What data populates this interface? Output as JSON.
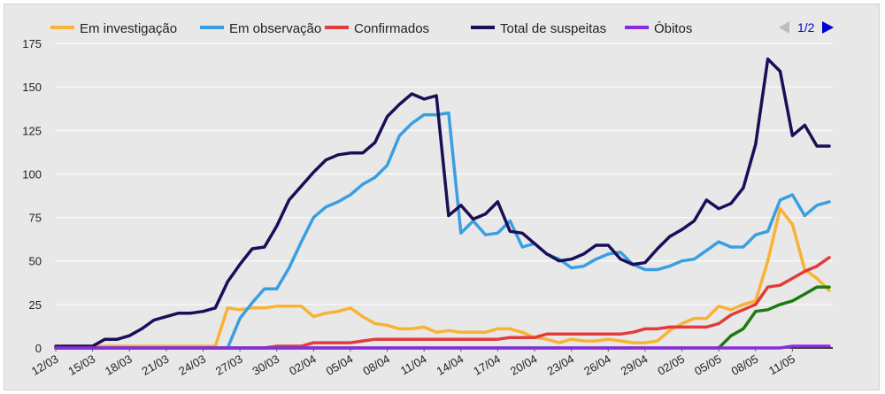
{
  "chart_data": {
    "type": "line",
    "x": [
      "12/03",
      "13/03",
      "14/03",
      "15/03",
      "16/03",
      "17/03",
      "18/03",
      "19/03",
      "20/03",
      "21/03",
      "22/03",
      "23/03",
      "24/03",
      "25/03",
      "26/03",
      "27/03",
      "28/03",
      "29/03",
      "30/03",
      "31/03",
      "01/04",
      "02/04",
      "03/04",
      "04/04",
      "05/04",
      "06/04",
      "07/04",
      "08/04",
      "09/04",
      "10/04",
      "11/04",
      "12/04",
      "13/04",
      "14/04",
      "15/04",
      "16/04",
      "17/04",
      "18/04",
      "19/04",
      "20/04",
      "21/04",
      "22/04",
      "23/04",
      "24/04",
      "25/04",
      "26/04",
      "27/04",
      "28/04",
      "29/04",
      "30/04",
      "01/05",
      "02/05",
      "03/05",
      "04/05",
      "05/05",
      "06/05",
      "07/05",
      "08/05",
      "09/05",
      "10/05",
      "11/05",
      "12/05",
      "13/05",
      "14/05"
    ],
    "x_tick_labels": [
      "12/03",
      "15/03",
      "18/03",
      "21/03",
      "24/03",
      "27/03",
      "30/03",
      "02/04",
      "05/04",
      "08/04",
      "11/04",
      "14/04",
      "17/04",
      "20/04",
      "23/04",
      "26/04",
      "29/04",
      "02/05",
      "05/05",
      "08/05",
      "11/05"
    ],
    "ylim": [
      0,
      175
    ],
    "y_ticks": [
      0,
      25,
      50,
      75,
      100,
      125,
      150,
      175
    ],
    "grid": true,
    "legend_position": "top",
    "pager": "1/2",
    "series": [
      {
        "name": "Em investigação",
        "color": "#f9b233",
        "values": [
          1,
          1,
          1,
          1,
          1,
          1,
          1,
          1,
          1,
          1,
          1,
          1,
          1,
          1,
          23,
          22,
          23,
          23,
          24,
          24,
          24,
          18,
          20,
          21,
          23,
          18,
          14,
          13,
          11,
          11,
          12,
          9,
          10,
          9,
          9,
          9,
          11,
          11,
          9,
          6,
          5,
          3,
          5,
          4,
          4,
          5,
          4,
          3,
          3,
          4,
          10,
          14,
          17,
          17,
          24,
          22,
          25,
          27,
          50,
          80,
          71,
          45,
          40,
          33
        ]
      },
      {
        "name": "Em observação",
        "color": "#3a9fe2",
        "values": [
          0,
          0,
          0,
          0,
          0,
          0,
          0,
          0,
          0,
          0,
          0,
          0,
          0,
          0,
          0,
          17,
          26,
          34,
          34,
          46,
          61,
          75,
          81,
          84,
          88,
          94,
          98,
          105,
          122,
          129,
          134,
          134,
          135,
          66,
          73,
          65,
          66,
          73,
          58,
          60,
          54,
          51,
          46,
          47,
          51,
          54,
          55,
          48,
          45,
          45,
          47,
          50,
          51,
          56,
          61,
          58,
          58,
          65,
          67,
          85,
          88,
          76,
          82,
          84
        ]
      },
      {
        "name": "Confirmados",
        "color": "#e33b3b",
        "values": [
          0,
          0,
          0,
          0,
          0,
          0,
          0,
          0,
          0,
          0,
          0,
          0,
          0,
          0,
          0,
          0,
          0,
          0,
          1,
          1,
          1,
          3,
          3,
          3,
          3,
          4,
          5,
          5,
          5,
          5,
          5,
          5,
          5,
          5,
          5,
          5,
          5,
          6,
          6,
          6,
          8,
          8,
          8,
          8,
          8,
          8,
          8,
          9,
          11,
          11,
          12,
          12,
          12,
          12,
          14,
          19,
          22,
          25,
          35,
          36,
          40,
          44,
          47,
          52
        ]
      },
      {
        "name": "Total de suspeitas",
        "color": "#1a0f57",
        "values": [
          1,
          1,
          1,
          1,
          5,
          5,
          7,
          11,
          16,
          18,
          20,
          20,
          21,
          23,
          38,
          48,
          57,
          58,
          70,
          85,
          93,
          101,
          108,
          111,
          112,
          112,
          118,
          133,
          140,
          146,
          143,
          145,
          76,
          82,
          74,
          77,
          84,
          67,
          66,
          60,
          54,
          50,
          51,
          54,
          59,
          59,
          51,
          48,
          49,
          57,
          64,
          68,
          73,
          85,
          80,
          83,
          92,
          117,
          166,
          159,
          122,
          128,
          116,
          116
        ]
      },
      {
        "name": "",
        "color": "#1e7a12",
        "values": [
          0,
          0,
          0,
          0,
          0,
          0,
          0,
          0,
          0,
          0,
          0,
          0,
          0,
          0,
          0,
          0,
          0,
          0,
          0,
          0,
          0,
          0,
          0,
          0,
          0,
          0,
          0,
          0,
          0,
          0,
          0,
          0,
          0,
          0,
          0,
          0,
          0,
          0,
          0,
          0,
          0,
          0,
          0,
          0,
          0,
          0,
          0,
          0,
          0,
          0,
          0,
          0,
          0,
          0,
          0,
          7,
          11,
          21,
          22,
          25,
          27,
          31,
          35,
          35
        ]
      },
      {
        "name": "Óbitos",
        "color": "#8a2be2",
        "values": [
          0,
          0,
          0,
          0,
          0,
          0,
          0,
          0,
          0,
          0,
          0,
          0,
          0,
          0,
          0,
          0,
          0,
          0,
          0,
          0,
          0,
          0,
          0,
          0,
          0,
          0,
          0,
          0,
          0,
          0,
          0,
          0,
          0,
          0,
          0,
          0,
          0,
          0,
          0,
          0,
          0,
          0,
          0,
          0,
          0,
          0,
          0,
          0,
          0,
          0,
          0,
          0,
          0,
          0,
          0,
          0,
          0,
          0,
          0,
          0,
          1,
          1,
          1,
          1
        ]
      }
    ]
  }
}
